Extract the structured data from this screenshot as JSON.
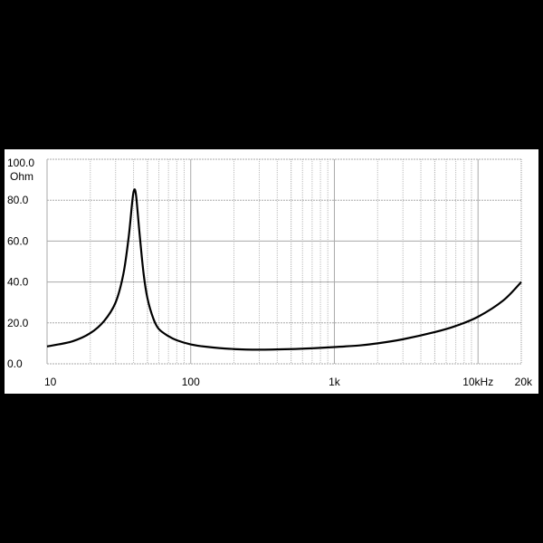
{
  "chart_data": {
    "type": "line",
    "title": "",
    "ylabel": "Ohm",
    "xlabel": "",
    "x_scale": "log",
    "xlim": [
      10,
      20000
    ],
    "ylim": [
      0,
      100
    ],
    "grid": true,
    "y_ticks": [
      "0.0",
      "20.0",
      "40.0",
      "60.0",
      "80.0",
      "100.0"
    ],
    "y_tick_values": [
      0,
      20,
      40,
      60,
      80,
      100
    ],
    "x_ticks": [
      "10",
      "100",
      "1k",
      "10kHz",
      "20k"
    ],
    "x_tick_values": [
      10,
      100,
      1000,
      10000,
      20000
    ],
    "series": [
      {
        "color": "#000000",
        "x": [
          10,
          15,
          20,
          25,
          30,
          34,
          37,
          39,
          40,
          41,
          42,
          44,
          47,
          50,
          55,
          60,
          70,
          80,
          100,
          130,
          200,
          300,
          500,
          700,
          1000,
          1500,
          2000,
          3000,
          5000,
          7000,
          10000,
          15000,
          20000
        ],
        "y": [
          8.5,
          11,
          15,
          21,
          30,
          44,
          62,
          78,
          84,
          85,
          80,
          64,
          44,
          32,
          22,
          17,
          13.5,
          11.5,
          9.5,
          8.3,
          7.2,
          6.9,
          7.2,
          7.6,
          8.2,
          9,
          10,
          12,
          15.5,
          18.5,
          23,
          31,
          40
        ]
      }
    ]
  }
}
